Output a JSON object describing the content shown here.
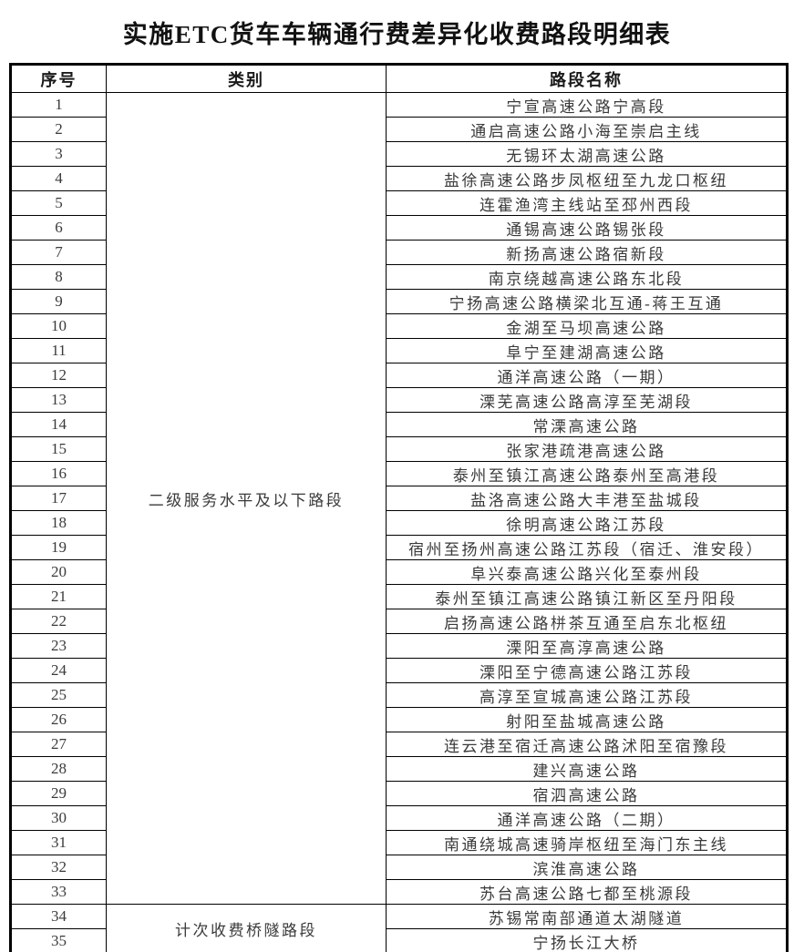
{
  "title": "实施ETC货车车辆通行费差异化收费路段明细表",
  "table": {
    "headers": [
      "序号",
      "类别",
      "路段名称"
    ],
    "categories": [
      {
        "label": "二级服务水平及以下路段",
        "start": 1,
        "end": 33
      },
      {
        "label": "计次收费桥隧路段",
        "start": 34,
        "end": 35
      }
    ],
    "rows": [
      {
        "no": "1",
        "name": "宁宣高速公路宁高段"
      },
      {
        "no": "2",
        "name": "通启高速公路小海至崇启主线"
      },
      {
        "no": "3",
        "name": "无锡环太湖高速公路"
      },
      {
        "no": "4",
        "name": "盐徐高速公路步凤枢纽至九龙口枢纽"
      },
      {
        "no": "5",
        "name": "连霍渔湾主线站至邳州西段"
      },
      {
        "no": "6",
        "name": "通锡高速公路锡张段"
      },
      {
        "no": "7",
        "name": "新扬高速公路宿新段"
      },
      {
        "no": "8",
        "name": "南京绕越高速公路东北段"
      },
      {
        "no": "9",
        "name": "宁扬高速公路横梁北互通-蒋王互通"
      },
      {
        "no": "10",
        "name": "金湖至马坝高速公路"
      },
      {
        "no": "11",
        "name": "阜宁至建湖高速公路"
      },
      {
        "no": "12",
        "name": "通洋高速公路（一期）"
      },
      {
        "no": "13",
        "name": "溧芜高速公路高淳至芜湖段"
      },
      {
        "no": "14",
        "name": "常溧高速公路"
      },
      {
        "no": "15",
        "name": "张家港疏港高速公路"
      },
      {
        "no": "16",
        "name": "泰州至镇江高速公路泰州至高港段"
      },
      {
        "no": "17",
        "name": "盐洛高速公路大丰港至盐城段"
      },
      {
        "no": "18",
        "name": "徐明高速公路江苏段"
      },
      {
        "no": "19",
        "name": "宿州至扬州高速公路江苏段（宿迁、淮安段）"
      },
      {
        "no": "20",
        "name": "阜兴泰高速公路兴化至泰州段"
      },
      {
        "no": "21",
        "name": "泰州至镇江高速公路镇江新区至丹阳段"
      },
      {
        "no": "22",
        "name": "启扬高速公路栟茶互通至启东北枢纽"
      },
      {
        "no": "23",
        "name": "溧阳至高淳高速公路"
      },
      {
        "no": "24",
        "name": "溧阳至宁德高速公路江苏段"
      },
      {
        "no": "25",
        "name": "高淳至宣城高速公路江苏段"
      },
      {
        "no": "26",
        "name": "射阳至盐城高速公路"
      },
      {
        "no": "27",
        "name": "连云港至宿迁高速公路沭阳至宿豫段"
      },
      {
        "no": "28",
        "name": "建兴高速公路"
      },
      {
        "no": "29",
        "name": "宿泗高速公路"
      },
      {
        "no": "30",
        "name": "通洋高速公路（二期）"
      },
      {
        "no": "31",
        "name": "南通绕城高速骑岸枢纽至海门东主线"
      },
      {
        "no": "32",
        "name": "滨淮高速公路"
      },
      {
        "no": "33",
        "name": "苏台高速公路七都至桃源段"
      },
      {
        "no": "34",
        "name": "苏锡常南部通道太湖隧道"
      },
      {
        "no": "35",
        "name": "宁扬长江大桥"
      }
    ]
  }
}
